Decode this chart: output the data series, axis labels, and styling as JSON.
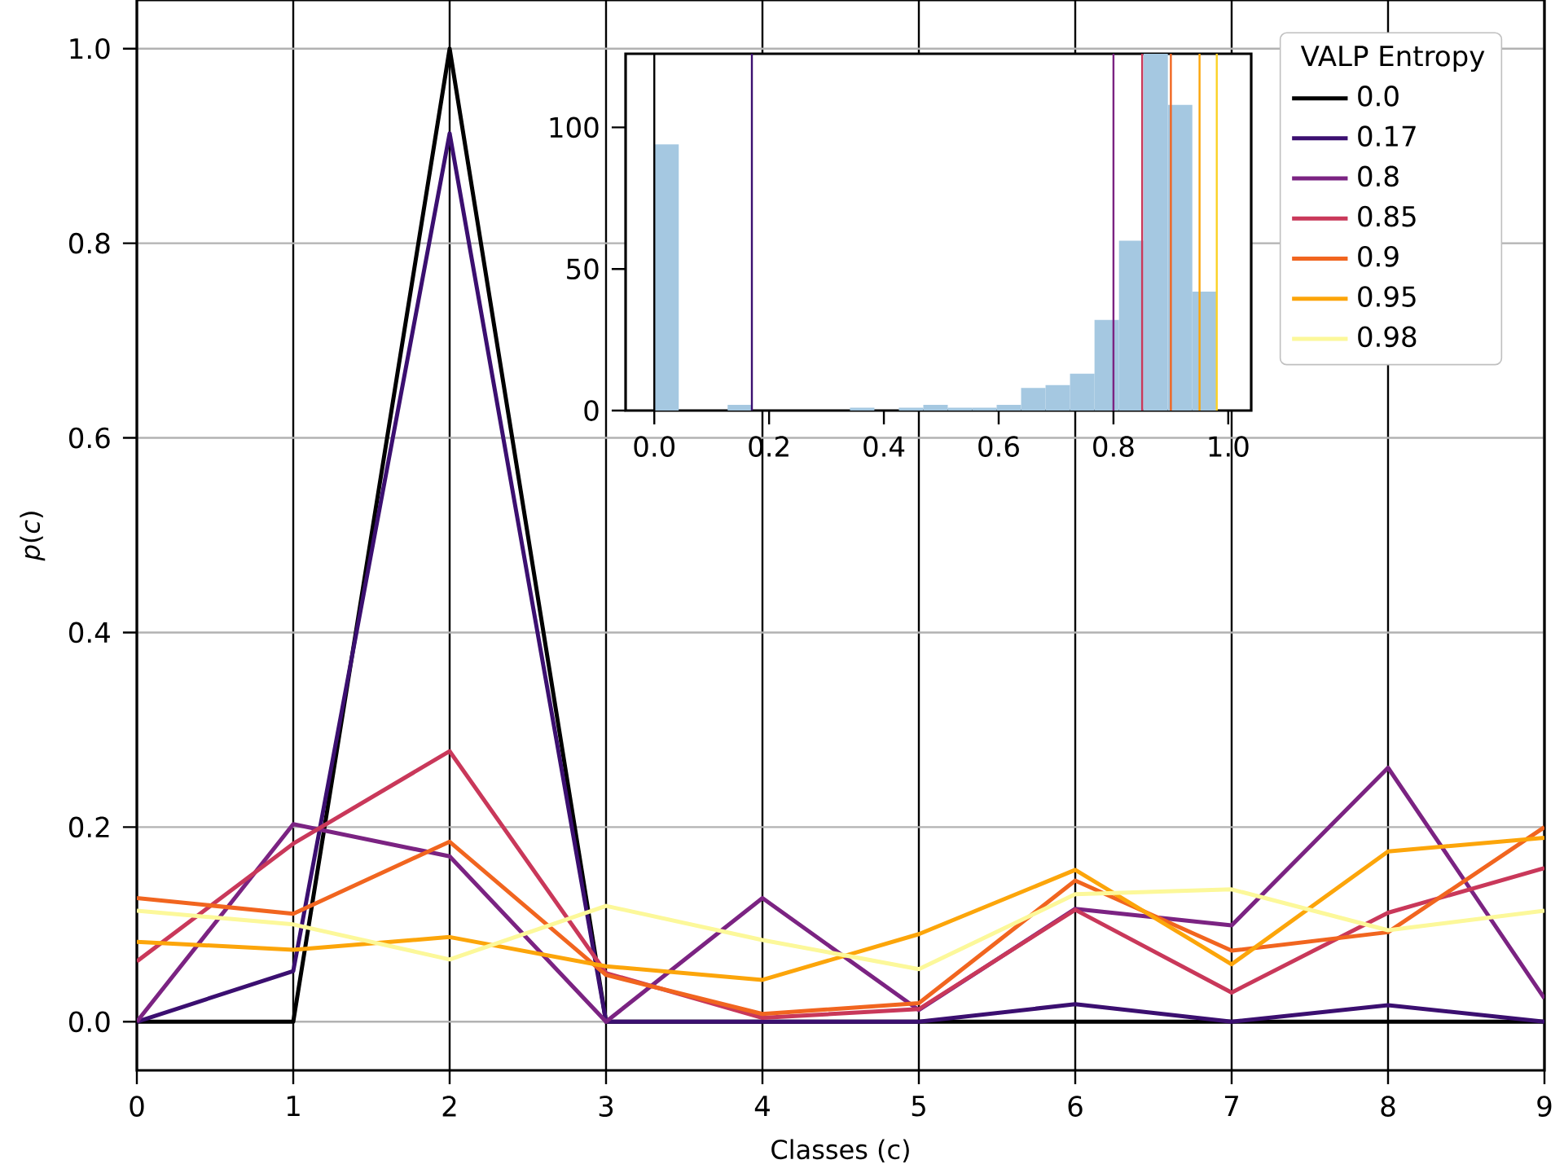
{
  "chart_data": [
    {
      "type": "line",
      "xlabel": "Classes (c)",
      "ylabel": "*p*(*c*)",
      "legend_title": "VALP Entropy",
      "legend": "top right",
      "grid": true,
      "x": [
        0,
        1,
        2,
        3,
        4,
        5,
        6,
        7,
        8,
        9
      ],
      "xlim": [
        0,
        9
      ],
      "ylim": [
        -0.05,
        1.05
      ],
      "xticks": [
        0,
        1,
        2,
        3,
        4,
        5,
        6,
        7,
        8,
        9
      ],
      "yticks": [
        {
          "value": 0,
          "label": "0.0"
        },
        0.2,
        0.4,
        0.6,
        0.8,
        {
          "value": 1,
          "label": "1.0"
        }
      ],
      "series": [
        {
          "name": "0.0",
          "color": "#000000",
          "values": [
            0,
            0,
            1.0,
            0,
            0,
            0,
            0,
            0,
            0,
            0
          ]
        },
        {
          "name": "0.17",
          "color": "#3b0f70",
          "values": [
            0,
            0.052,
            0.913,
            0,
            0,
            0,
            0.018,
            0,
            0.017,
            0
          ]
        },
        {
          "name": "0.8",
          "color": "#7b2382",
          "values": [
            0,
            0.203,
            0.17,
            0,
            0.127,
            0.012,
            0.116,
            0.099,
            0.261,
            0.024
          ]
        },
        {
          "name": "0.85",
          "color": "#c9385a",
          "values": [
            0.062,
            0.183,
            0.278,
            0.05,
            0.004,
            0.013,
            0.115,
            0.03,
            0.112,
            0.158
          ]
        },
        {
          "name": "0.9",
          "color": "#f1651f",
          "values": [
            0.127,
            0.111,
            0.185,
            0.048,
            0.008,
            0.019,
            0.145,
            0.073,
            0.092,
            0.2
          ]
        },
        {
          "name": "0.95",
          "color": "#fca50a",
          "values": [
            0.082,
            0.074,
            0.087,
            0.057,
            0.043,
            0.09,
            0.156,
            0.059,
            0.175,
            0.189
          ]
        },
        {
          "name": "0.98",
          "color": "#fcf89a",
          "values": [
            0.114,
            0.1,
            0.064,
            0.119,
            0.084,
            0.054,
            0.131,
            0.136,
            0.094,
            0.114
          ]
        }
      ]
    },
    {
      "type": "histogram",
      "color": "#a5c8e1",
      "xlim": [
        -0.05,
        1.04
      ],
      "ylim": [
        0,
        126
      ],
      "xticks": [
        {
          "value": 0,
          "label": "0.0"
        },
        0.2,
        0.4,
        0.6,
        0.8,
        {
          "value": 1,
          "label": "1.0"
        }
      ],
      "yticks": [
        0,
        50,
        100
      ],
      "bins": [
        0,
        0.0426,
        0.0852,
        0.1278,
        0.1704,
        0.213,
        0.2557,
        0.2983,
        0.3409,
        0.3835,
        0.4261,
        0.4687,
        0.5113,
        0.5539,
        0.5965,
        0.6391,
        0.6817,
        0.7243,
        0.767,
        0.8096,
        0.8522,
        0.8948,
        0.9374,
        0.98
      ],
      "values": [
        94,
        0,
        0,
        2,
        0,
        0,
        0,
        0,
        1,
        0,
        1,
        2,
        1,
        1,
        2,
        8,
        9,
        13,
        32,
        60,
        126,
        108,
        42
      ],
      "ref_lines": [
        {
          "axis": "x",
          "value": 0,
          "color": "#000000"
        },
        {
          "axis": "x",
          "value": 0.17,
          "color": "#3b0f70"
        },
        {
          "axis": "x",
          "value": 0.8,
          "color": "#7b2382"
        },
        {
          "axis": "x",
          "value": 0.85,
          "color": "#c9385a"
        },
        {
          "axis": "x",
          "value": 0.9,
          "color": "#f1651f"
        },
        {
          "axis": "x",
          "value": 0.95,
          "color": "#fca50a"
        },
        {
          "axis": "x",
          "value": 0.98,
          "color": "#fcd225"
        }
      ]
    }
  ]
}
